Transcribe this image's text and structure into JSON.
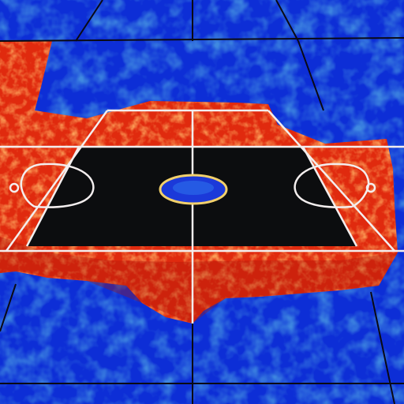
{
  "scene": {
    "subject": "basketball-court",
    "palette": {
      "outer_field": "#0d2ed6",
      "outer_field_light": "#2f7cf0",
      "outer_field_dark": "#061a8c",
      "surround_red": "#e02a0e",
      "surround_red_dark": "#a8140a",
      "surround_orange": "#ff6a2a",
      "court_floor": "#0c0d0f",
      "court_lines": "#f3eeee",
      "center_circle_fill": "#1b39d9",
      "center_circle_ring": "#f2d06b",
      "grid_lines": "#0a0a14"
    }
  }
}
